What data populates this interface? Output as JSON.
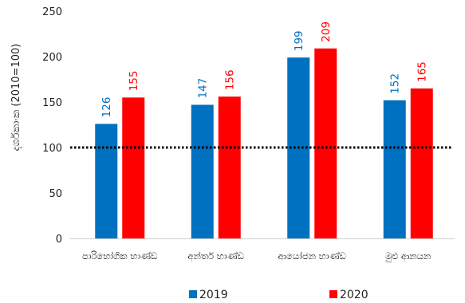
{
  "chart_data": {
    "type": "bar",
    "categories": [
      "පාරිභෝගික භාණ්ඩ",
      "අන්තර් භාණ්ඩ",
      "ආයෝජන භාණ්ඩ",
      "මුළු ආනයන"
    ],
    "series": [
      {
        "name": "2019",
        "values": [
          126,
          147,
          199,
          152
        ],
        "color": "#0070C0"
      },
      {
        "name": "2020",
        "values": [
          155,
          156,
          209,
          165
        ],
        "color": "#FF0000"
      }
    ],
    "ylabel": "දර්ශකාංක (2010=100)",
    "ylim": [
      0,
      250
    ],
    "yticks": [
      0,
      50,
      100,
      150,
      200,
      250
    ],
    "reference_line": {
      "value": 100,
      "style": "dotted",
      "color": "#000000"
    },
    "legend": "bottom",
    "grid": false
  }
}
